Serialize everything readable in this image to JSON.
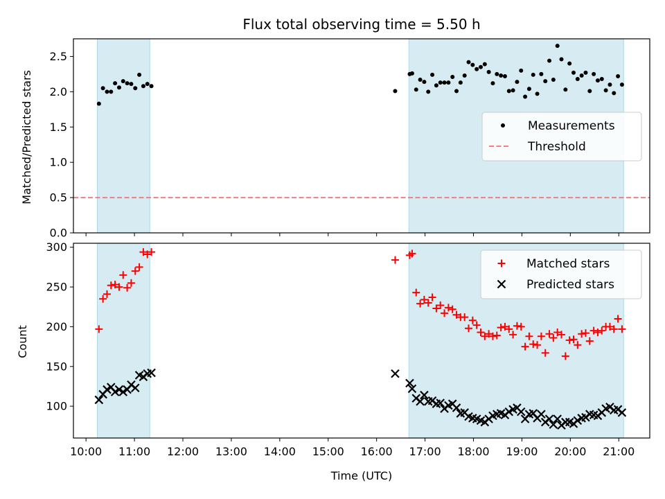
{
  "chart_data": {
    "title": "Flux total observing time = 5.50 h",
    "xlabel": "Time (UTC)",
    "x_tick_labels": [
      "10:00",
      "11:00",
      "12:00",
      "13:00",
      "14:00",
      "15:00",
      "16:00",
      "17:00",
      "18:00",
      "19:00",
      "20:00",
      "21:00"
    ],
    "xlim_hours": [
      9.74,
      21.64
    ],
    "shaded_intervals": [
      {
        "start": "10:14",
        "end": "11:19"
      },
      {
        "start": "16:40",
        "end": "21:06"
      }
    ],
    "colors": {
      "shade": "#add8e6",
      "threshold": "#f08080",
      "matched": "#ff0000",
      "predicted": "#000000",
      "measurements": "#000000"
    },
    "panels": [
      {
        "type": "scatter",
        "ylabel": "Matched/Predicted stars",
        "ylim": [
          0,
          2.75
        ],
        "y_ticks": [
          "0.0",
          "0.5",
          "1.0",
          "1.5",
          "2.0",
          "2.5"
        ],
        "legend_position": "center-right",
        "threshold": {
          "name": "Threshold",
          "value": 0.5
        },
        "series": [
          {
            "name": "Measurements",
            "marker": "dot",
            "x": [
              "10:16",
              "10:21",
              "10:26",
              "10:31",
              "10:36",
              "10:41",
              "10:46",
              "10:51",
              "10:56",
              "11:01",
              "11:06",
              "11:11",
              "11:16",
              "11:21",
              "16:23",
              "16:41",
              "16:44",
              "16:49",
              "16:54",
              "16:59",
              "17:04",
              "17:09",
              "17:14",
              "17:19",
              "17:24",
              "17:29",
              "17:34",
              "17:39",
              "17:44",
              "17:49",
              "17:54",
              "17:59",
              "18:04",
              "18:09",
              "18:14",
              "18:19",
              "18:24",
              "18:29",
              "18:34",
              "18:39",
              "18:44",
              "18:49",
              "18:54",
              "18:59",
              "19:04",
              "19:09",
              "19:14",
              "19:19",
              "19:24",
              "19:29",
              "19:34",
              "19:39",
              "19:44",
              "19:49",
              "19:54",
              "19:59",
              "20:04",
              "20:09",
              "20:14",
              "20:19",
              "20:24",
              "20:29",
              "20:34",
              "20:39",
              "20:44",
              "20:49",
              "20:54",
              "20:59",
              "21:04"
            ],
            "y": [
              1.83,
              2.05,
              2.0,
              2.0,
              2.12,
              2.06,
              2.15,
              2.12,
              2.11,
              2.05,
              2.24,
              2.08,
              2.11,
              2.08,
              2.01,
              2.25,
              2.26,
              2.03,
              2.17,
              2.14,
              2.0,
              2.24,
              2.09,
              2.13,
              2.13,
              2.13,
              2.21,
              2.01,
              2.13,
              2.23,
              2.42,
              2.38,
              2.32,
              2.35,
              2.39,
              2.28,
              2.12,
              2.25,
              2.23,
              2.22,
              2.01,
              2.02,
              2.14,
              2.3,
              1.93,
              2.04,
              2.24,
              1.97,
              2.25,
              2.15,
              2.44,
              2.17,
              2.65,
              2.46,
              2.03,
              2.4,
              2.27,
              2.18,
              2.23,
              2.27,
              2.01,
              2.25,
              2.16,
              2.18,
              2.02,
              2.1,
              1.98,
              2.22,
              2.1
            ]
          }
        ]
      },
      {
        "type": "scatter",
        "ylabel": "Count",
        "ylim": [
          60,
          305
        ],
        "y_ticks": [
          "100",
          "150",
          "200",
          "250",
          "300"
        ],
        "legend_position": "top-right",
        "series": [
          {
            "name": "Matched stars",
            "marker": "plus",
            "x": [
              "10:16",
              "10:21",
              "10:26",
              "10:31",
              "10:36",
              "10:41",
              "10:46",
              "10:51",
              "10:56",
              "11:01",
              "11:06",
              "11:11",
              "11:16",
              "11:21",
              "16:23",
              "16:41",
              "16:44",
              "16:49",
              "16:54",
              "16:59",
              "17:04",
              "17:09",
              "17:14",
              "17:19",
              "17:24",
              "17:29",
              "17:34",
              "17:39",
              "17:44",
              "17:49",
              "17:54",
              "17:59",
              "18:04",
              "18:09",
              "18:14",
              "18:19",
              "18:24",
              "18:29",
              "18:34",
              "18:39",
              "18:44",
              "18:49",
              "18:54",
              "18:59",
              "19:04",
              "19:09",
              "19:14",
              "19:19",
              "19:24",
              "19:29",
              "19:34",
              "19:39",
              "19:44",
              "19:49",
              "19:54",
              "19:59",
              "20:04",
              "20:09",
              "20:14",
              "20:19",
              "20:24",
              "20:29",
              "20:34",
              "20:39",
              "20:44",
              "20:49",
              "20:54",
              "20:59",
              "21:04"
            ],
            "y": [
              197,
              235,
              241,
              252,
              253,
              250,
              265,
              249,
              255,
              270,
              275,
              294,
              291,
              294,
              284,
              290,
              292,
              243,
              229,
              234,
              230,
              237,
              223,
              227,
              217,
              224,
              222,
              215,
              212,
              212,
              198,
              208,
              202,
              193,
              188,
              191,
              188,
              189,
              199,
              200,
              197,
              190,
              201,
              200,
              175,
              188,
              178,
              177,
              188,
              167,
              191,
              186,
              193,
              190,
              163,
              183,
              184,
              177,
              191,
              192,
              182,
              195,
              193,
              195,
              200,
              200,
              197,
              210,
              197
            ]
          },
          {
            "name": "Predicted stars",
            "marker": "x",
            "x": [
              "10:16",
              "10:21",
              "10:26",
              "10:31",
              "10:36",
              "10:41",
              "10:46",
              "10:51",
              "10:56",
              "11:01",
              "11:06",
              "11:11",
              "11:16",
              "11:21",
              "16:23",
              "16:41",
              "16:44",
              "16:49",
              "16:54",
              "16:59",
              "17:04",
              "17:09",
              "17:14",
              "17:19",
              "17:24",
              "17:29",
              "17:34",
              "17:39",
              "17:44",
              "17:49",
              "17:54",
              "17:59",
              "18:04",
              "18:09",
              "18:14",
              "18:19",
              "18:24",
              "18:29",
              "18:34",
              "18:39",
              "18:44",
              "18:49",
              "18:54",
              "18:59",
              "19:04",
              "19:09",
              "19:14",
              "19:19",
              "19:24",
              "19:29",
              "19:34",
              "19:39",
              "19:44",
              "19:49",
              "19:54",
              "19:59",
              "20:04",
              "20:09",
              "20:14",
              "20:19",
              "20:24",
              "20:29",
              "20:34",
              "20:39",
              "20:44",
              "20:49",
              "20:54",
              "20:59",
              "21:04"
            ],
            "y": [
              108,
              115,
              121,
              124,
              118,
              121,
              118,
              121,
              127,
              123,
              139,
              137,
              141,
              142,
              141,
              129,
              122,
              110,
              106,
              114,
              106,
              107,
              103,
              104,
              97,
              101,
              103,
              98,
              91,
              92,
              87,
              85,
              84,
              82,
              80,
              84,
              88,
              90,
              91,
              89,
              93,
              96,
              98,
              93,
              84,
              90,
              91,
              85,
              90,
              80,
              84,
              77,
              84,
              76,
              80,
              80,
              78,
              82,
              85,
              86,
              90,
              89,
              88,
              92,
              97,
              99,
              95,
              96,
              92
            ]
          }
        ]
      }
    ]
  }
}
